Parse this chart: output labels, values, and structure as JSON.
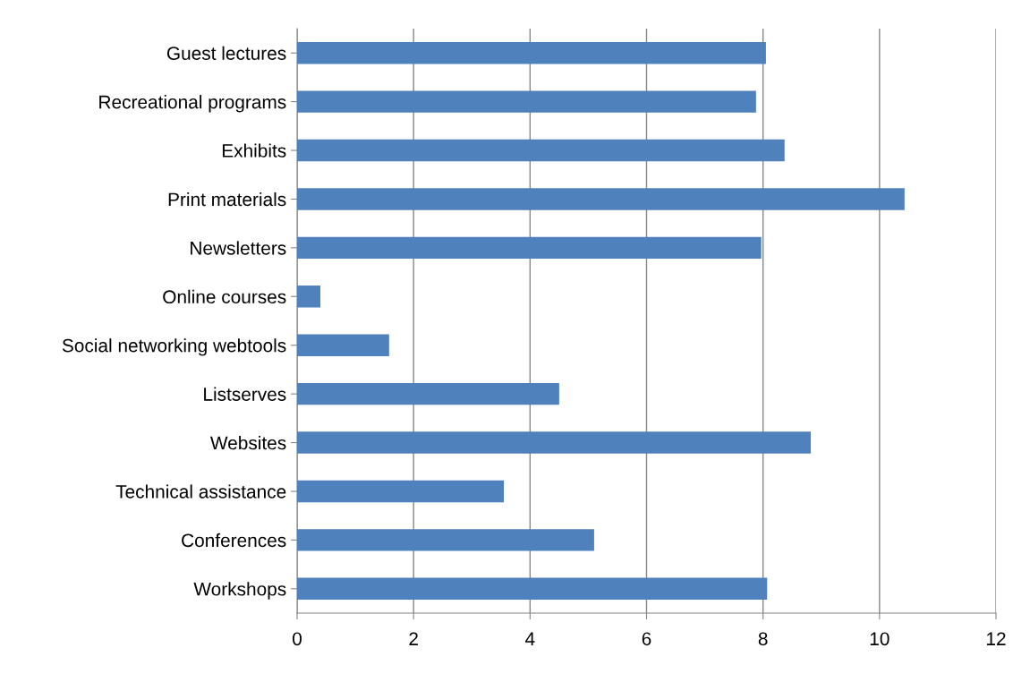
{
  "chart_data": {
    "type": "bar",
    "orientation": "horizontal",
    "categories": [
      "Guest lectures",
      "Recreational programs",
      "Exhibits",
      "Print materials",
      "Newsletters",
      "Online courses",
      "Social networking webtools",
      "Listserves",
      "Websites",
      "Technical assistance",
      "Conferences",
      "Workshops"
    ],
    "values": [
      8.05,
      7.88,
      8.37,
      10.43,
      7.97,
      0.4,
      1.58,
      4.5,
      8.82,
      3.55,
      5.1,
      8.07
    ],
    "color": "#4f81bd",
    "xlim": [
      0,
      12
    ],
    "xticks": [
      0,
      2,
      4,
      6,
      8,
      10,
      12
    ],
    "grid": "x",
    "legend": false
  }
}
